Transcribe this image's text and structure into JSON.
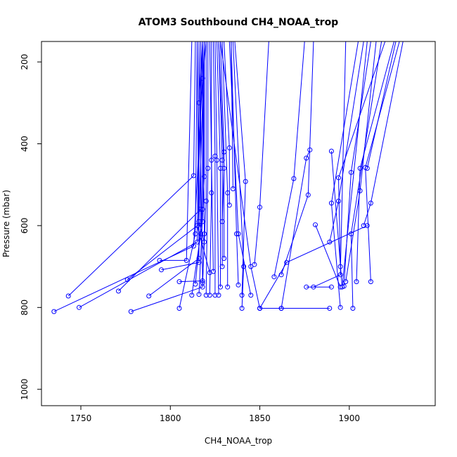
{
  "chart_data": {
    "type": "scatter",
    "title": "ATOM3 Southbound CH4_NOAA_trop",
    "xlabel": "CH4_NOAA_trop",
    "ylabel": "Pressure (mbar)",
    "xlim": [
      1728,
      1948
    ],
    "ylim": [
      1040,
      150
    ],
    "y_reversed": true,
    "x_ticks": [
      1750,
      1800,
      1850,
      1900
    ],
    "y_ticks": [
      200,
      400,
      600,
      800,
      1000
    ],
    "grid": false,
    "legend": "none",
    "marker": "open-circle",
    "connected": true,
    "color": "#0000ff",
    "profiles": [
      [
        [
          1735,
          810
        ],
        [
          1813,
          650
        ],
        [
          1818,
          240
        ],
        [
          1820,
          150
        ]
      ],
      [
        [
          1749,
          800
        ],
        [
          1815,
          640
        ],
        [
          1816,
          300
        ],
        [
          1818,
          150
        ]
      ],
      [
        [
          1743,
          772
        ],
        [
          1813,
          478
        ],
        [
          1814,
          150
        ]
      ],
      [
        [
          1771,
          760
        ],
        [
          1817,
          560
        ],
        [
          1817,
          150
        ]
      ],
      [
        [
          1776,
          732
        ],
        [
          1818,
          590
        ],
        [
          1819,
          150
        ]
      ],
      [
        [
          1778,
          810
        ],
        [
          1818,
          750
        ],
        [
          1819,
          620
        ],
        [
          1818,
          150
        ]
      ],
      [
        [
          1788,
          772
        ],
        [
          1816,
          680
        ],
        [
          1816,
          150
        ]
      ],
      [
        [
          1794,
          685
        ],
        [
          1809,
          685
        ],
        [
          1812,
          150
        ]
      ],
      [
        [
          1795,
          708
        ],
        [
          1816,
          690
        ],
        [
          1815,
          150
        ]
      ],
      [
        [
          1805,
          802
        ],
        [
          1814,
          620
        ],
        [
          1815,
          150
        ]
      ],
      [
        [
          1805,
          737
        ],
        [
          1818,
          735
        ],
        [
          1816,
          150
        ]
      ],
      [
        [
          1812,
          770
        ],
        [
          1817,
          620
        ],
        [
          1817,
          150
        ]
      ],
      [
        [
          1814,
          743
        ],
        [
          1818,
          560
        ],
        [
          1818,
          150
        ]
      ],
      [
        [
          1816,
          768
        ],
        [
          1819,
          480
        ],
        [
          1819,
          150
        ]
      ],
      [
        [
          1818,
          740
        ],
        [
          1820,
          540
        ],
        [
          1820,
          150
        ]
      ],
      [
        [
          1820,
          770
        ],
        [
          1821,
          460
        ],
        [
          1821,
          150
        ]
      ],
      [
        [
          1822,
          770
        ],
        [
          1823,
          520
        ],
        [
          1823,
          150
        ]
      ],
      [
        [
          1824,
          712
        ],
        [
          1823,
          440
        ],
        [
          1822,
          150
        ]
      ],
      [
        [
          1825,
          770
        ],
        [
          1825,
          430
        ],
        [
          1824,
          150
        ]
      ],
      [
        [
          1827,
          770
        ],
        [
          1826,
          440
        ],
        [
          1825,
          150
        ]
      ],
      [
        [
          1828,
          750
        ],
        [
          1828,
          460
        ],
        [
          1826,
          150
        ]
      ],
      [
        [
          1829,
          700
        ],
        [
          1829,
          440
        ],
        [
          1827,
          150
        ]
      ],
      [
        [
          1830,
          680
        ],
        [
          1830,
          420
        ],
        [
          1828,
          150
        ]
      ],
      [
        [
          1832,
          750
        ],
        [
          1832,
          520
        ],
        [
          1829,
          150
        ]
      ],
      [
        [
          1833,
          550
        ],
        [
          1833,
          410
        ],
        [
          1830,
          150
        ]
      ],
      [
        [
          1835,
          510
        ],
        [
          1834,
          150
        ]
      ],
      [
        [
          1838,
          745
        ],
        [
          1837,
          620
        ],
        [
          1834,
          150
        ]
      ],
      [
        [
          1840,
          770
        ],
        [
          1842,
          492
        ],
        [
          1836,
          150
        ]
      ],
      [
        [
          1840,
          802
        ],
        [
          1841,
          700
        ],
        [
          1835,
          150
        ]
      ],
      [
        [
          1845,
          770
        ],
        [
          1838,
          620
        ],
        [
          1833,
          150
        ]
      ],
      [
        [
          1850,
          802
        ],
        [
          1845,
          700
        ],
        [
          1828,
          150
        ]
      ],
      [
        [
          1847,
          695
        ],
        [
          1850,
          555
        ],
        [
          1855,
          150
        ]
      ],
      [
        [
          1858,
          725
        ],
        [
          1869,
          485
        ],
        [
          1875,
          150
        ]
      ],
      [
        [
          1862,
          720
        ],
        [
          1877,
          525
        ],
        [
          1880,
          150
        ]
      ],
      [
        [
          1850,
          802
        ],
        [
          1862,
          802
        ],
        [
          1889,
          802
        ]
      ],
      [
        [
          1862,
          802
        ],
        [
          1876,
          435
        ],
        [
          1878,
          415
        ]
      ],
      [
        [
          1881,
          598
        ],
        [
          1895,
          750
        ]
      ],
      [
        [
          1876,
          750
        ],
        [
          1890,
          750
        ]
      ],
      [
        [
          1880,
          750
        ],
        [
          1895,
          720
        ],
        [
          1898,
          150
        ]
      ],
      [
        [
          1889,
          640
        ],
        [
          1894,
          540
        ],
        [
          1908,
          150
        ]
      ],
      [
        [
          1890,
          418
        ],
        [
          1896,
          750
        ],
        [
          1910,
          150
        ]
      ],
      [
        [
          1895,
          800
        ],
        [
          1890,
          545
        ],
        [
          1905,
          150
        ]
      ],
      [
        [
          1895,
          700
        ],
        [
          1894,
          483
        ],
        [
          1920,
          150
        ]
      ],
      [
        [
          1897,
          748
        ],
        [
          1901,
          470
        ],
        [
          1912,
          150
        ]
      ],
      [
        [
          1898,
          737
        ],
        [
          1906,
          515
        ],
        [
          1915,
          150
        ]
      ],
      [
        [
          1904,
          737
        ],
        [
          1906,
          460
        ],
        [
          1925,
          150
        ]
      ],
      [
        [
          1908,
          600
        ],
        [
          1912,
          545
        ],
        [
          1930,
          150
        ]
      ],
      [
        [
          1910,
          460
        ],
        [
          1926,
          150
        ]
      ],
      [
        [
          1912,
          737
        ],
        [
          1909,
          458
        ],
        [
          1928,
          150
        ]
      ],
      [
        [
          1902,
          802
        ],
        [
          1901,
          620
        ],
        [
          1918,
          150
        ]
      ],
      [
        [
          1850,
          802
        ],
        [
          1865,
          690
        ],
        [
          1910,
          600
        ]
      ],
      [
        [
          1822,
          715
        ],
        [
          1815,
          600
        ],
        [
          1818,
          150
        ]
      ],
      [
        [
          1819,
          640
        ],
        [
          1816,
          590
        ],
        [
          1819,
          150
        ]
      ],
      [
        [
          1829,
          590
        ],
        [
          1830,
          460
        ],
        [
          1827,
          150
        ]
      ]
    ]
  }
}
